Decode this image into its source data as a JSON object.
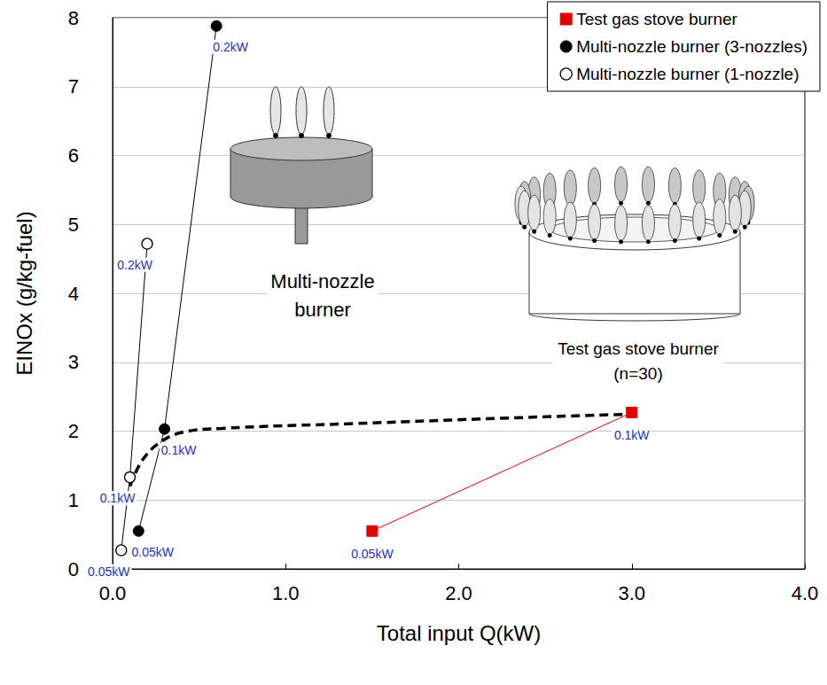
{
  "chart_data": {
    "type": "scatter",
    "x_label": "Total input Q(kW)",
    "y_label": "EINOx (g/kg-fuel)",
    "xlim": [
      0,
      4
    ],
    "xticks": [
      {
        "value": 0,
        "label": "0.0"
      },
      {
        "value": 1,
        "label": "1.0"
      },
      {
        "value": 2,
        "label": "2.0"
      },
      {
        "value": 3,
        "label": "3.0"
      },
      {
        "value": 4,
        "label": "4.0"
      }
    ],
    "ylim": [
      0,
      8
    ],
    "yticks": [
      0,
      1,
      2,
      3,
      4,
      5,
      6,
      7,
      8
    ],
    "grid": "y",
    "legend": "top-right",
    "annotations": [
      "Multi-nozzle\nburner",
      "Test gas stove burner\n(n=30)"
    ],
    "series": [
      {
        "name": "Test gas stove burner",
        "type": "line",
        "color": "#e00000",
        "marker": "square",
        "line_style": "solid",
        "x": [
          1.5,
          3.0
        ],
        "values": [
          0.55,
          2.27
        ],
        "labels": [
          "0.05kW",
          "0.1kW"
        ]
      },
      {
        "name": "Multi-nozzle burner (3-nozzles)",
        "type": "line",
        "color": "#000000",
        "marker": "circle",
        "line_style": "solid",
        "x": [
          0.15,
          0.3,
          0.6
        ],
        "values": [
          0.55,
          2.03,
          7.88
        ],
        "labels": [
          "0.05kW",
          "0.1kW",
          "0.2kW"
        ]
      },
      {
        "name": "Multi-nozzle burner (1-nozzle)",
        "type": "line",
        "color": "#000000",
        "marker": "circle_open",
        "line_style": "solid",
        "x": [
          0.05,
          0.1,
          0.2
        ],
        "values": [
          0.27,
          1.33,
          4.72
        ],
        "labels": [
          "0.05kW",
          "0.1kW",
          "0.2kW"
        ]
      },
      {
        "type": "line",
        "color": "#000000",
        "marker": "none",
        "line_style": "dashed",
        "x": [
          0.1,
          0.17,
          0.27,
          0.4,
          0.63,
          1.4,
          2.4,
          3.05
        ],
        "values": [
          1.2,
          1.57,
          1.83,
          1.98,
          2.04,
          2.11,
          2.2,
          2.25
        ]
      }
    ]
  }
}
